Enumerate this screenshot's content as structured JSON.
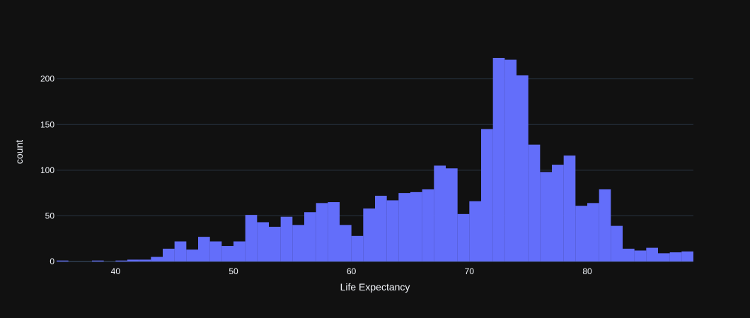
{
  "chart_data": {
    "type": "bar",
    "subtype": "histogram",
    "xlabel": "Life Expectancy",
    "ylabel": "count",
    "bar_color": "#636efa",
    "background": "#111111",
    "grid_color": "#283442",
    "xlim": [
      35,
      89
    ],
    "ylim": [
      0,
      240
    ],
    "x_ticks": [
      40,
      50,
      60,
      70,
      80
    ],
    "y_ticks": [
      0,
      50,
      100,
      150,
      200
    ],
    "bin_start": 35,
    "bin_width": 1,
    "values": [
      1,
      0,
      0,
      1,
      0,
      1,
      2,
      2,
      5,
      14,
      22,
      13,
      27,
      22,
      17,
      22,
      51,
      43,
      38,
      49,
      40,
      54,
      64,
      65,
      40,
      28,
      58,
      72,
      67,
      75,
      76,
      79,
      105,
      102,
      52,
      66,
      145,
      223,
      221,
      204,
      128,
      98,
      106,
      116,
      61,
      64,
      79,
      39,
      14,
      12,
      15,
      9,
      10,
      11
    ]
  }
}
